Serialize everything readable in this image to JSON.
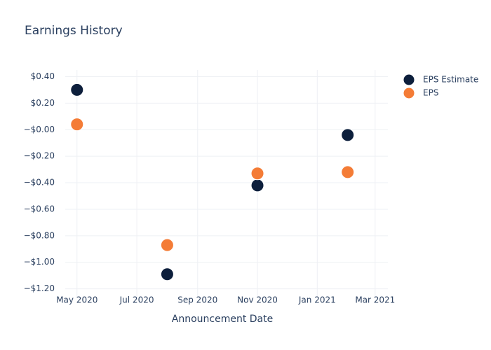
{
  "chart_data": {
    "type": "scatter",
    "title": "Earnings History",
    "xlabel": "Announcement Date",
    "x": [
      "2020-05",
      "2020-08",
      "2020-11",
      "2021-02"
    ],
    "series": [
      {
        "name": "EPS Estimate",
        "color": "#0d1f3c",
        "values": [
          0.3,
          -1.09,
          -0.42,
          -0.04
        ]
      },
      {
        "name": "EPS",
        "color": "#f47c36",
        "values": [
          0.04,
          -0.87,
          -0.33,
          -0.32
        ]
      }
    ],
    "xlim": [
      "2020-04-19",
      "2021-03-14"
    ],
    "xticks": [
      {
        "value": "2020-05-01",
        "label": "May 2020"
      },
      {
        "value": "2020-07-01",
        "label": "Jul 2020"
      },
      {
        "value": "2020-09-01",
        "label": "Sep 2020"
      },
      {
        "value": "2020-11-01",
        "label": "Nov 2020"
      },
      {
        "value": "2021-01-01",
        "label": "Jan 2021"
      },
      {
        "value": "2021-03-01",
        "label": "Mar 2021"
      }
    ],
    "ylim": [
      -1.26,
      0.45
    ],
    "yticks": [
      {
        "value": 0.4,
        "label": "$0.40"
      },
      {
        "value": 0.2,
        "label": "$0.20"
      },
      {
        "value": 0,
        "label": "−$0.00"
      },
      {
        "value": -0.2,
        "label": "−$0.20"
      },
      {
        "value": -0.4,
        "label": "−$0.40"
      },
      {
        "value": -0.6,
        "label": "−$0.60"
      },
      {
        "value": -0.8,
        "label": "−$0.80"
      },
      {
        "value": -1.0,
        "label": "−$1.00"
      },
      {
        "value": -1.2,
        "label": "−$1.20"
      }
    ],
    "grid": true,
    "legend": "upper right"
  }
}
